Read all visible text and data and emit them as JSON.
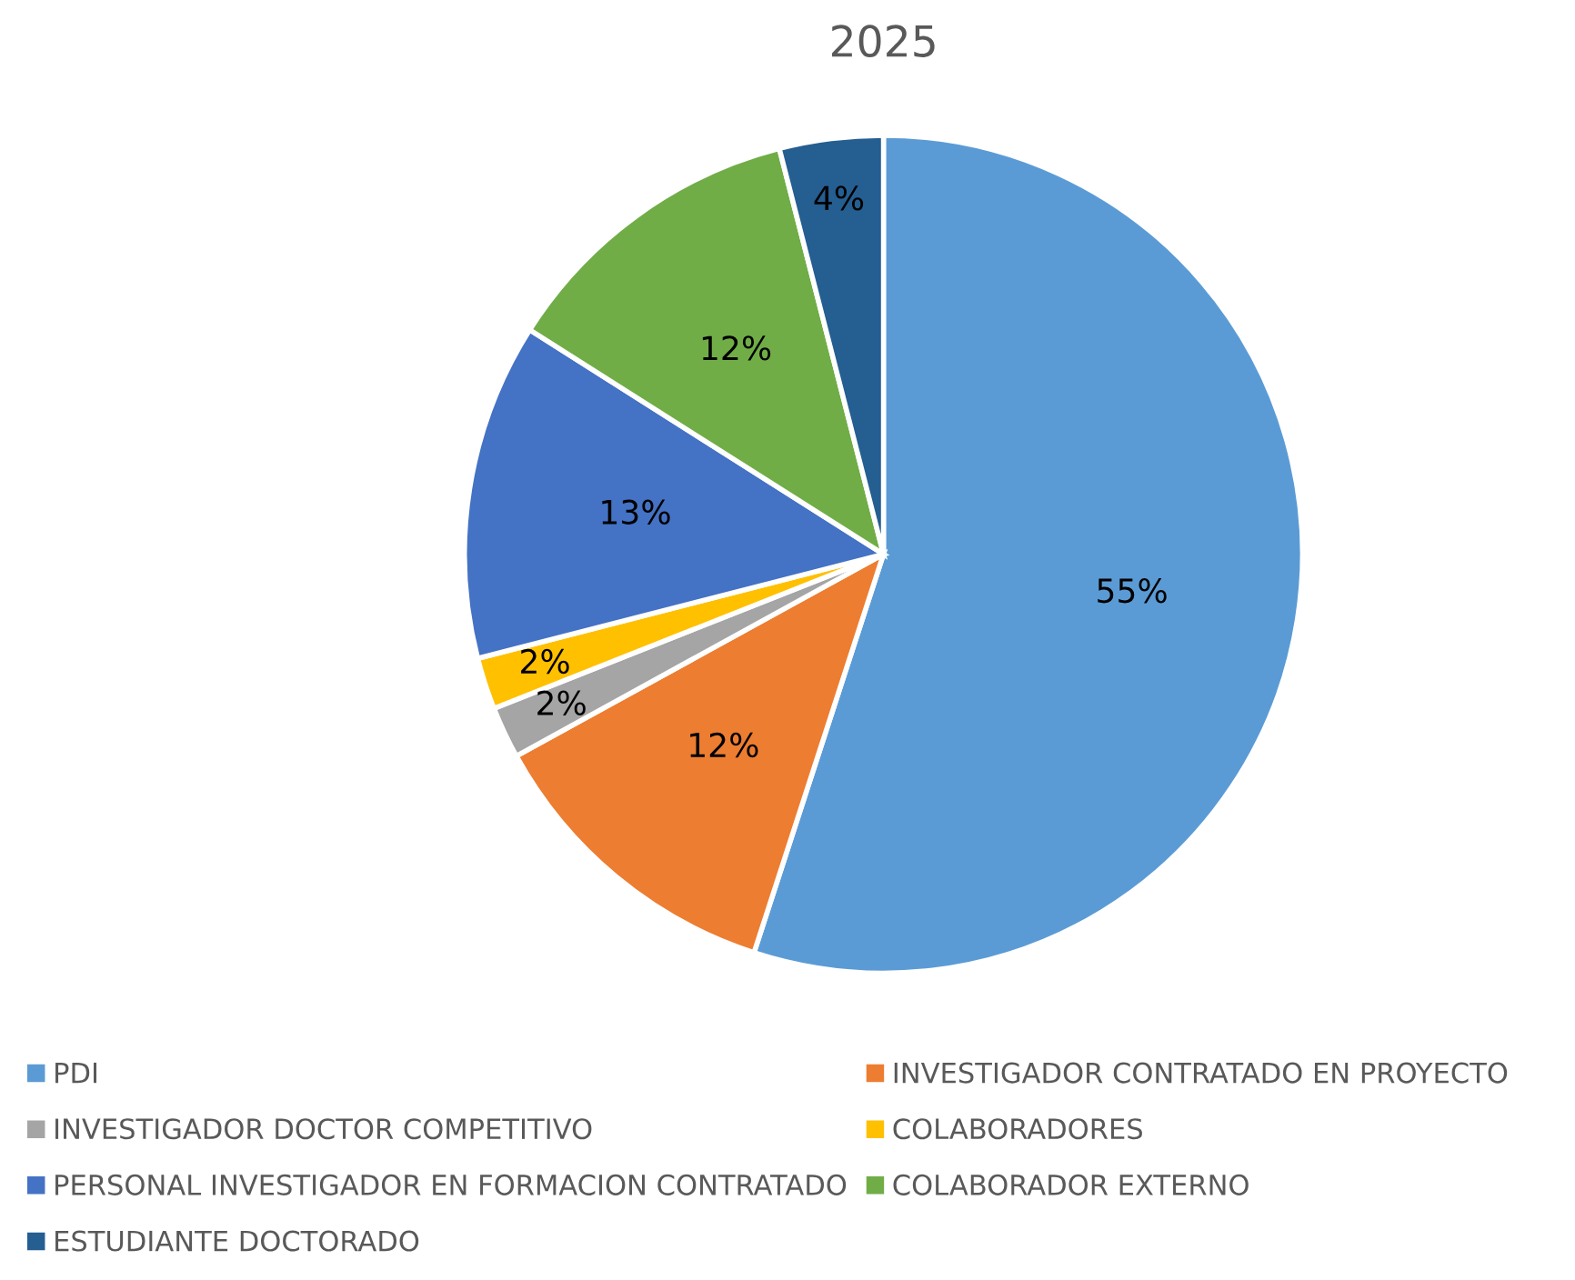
{
  "chart_data": {
    "type": "pie",
    "title": "2025",
    "categories": [
      "PDI",
      "INVESTIGADOR CONTRATADO EN PROYECTO",
      "INVESTIGADOR DOCTOR COMPETITIVO",
      "COLABORADORES",
      "PERSONAL INVESTIGADOR EN FORMACION CONTRATADO",
      "COLABORADOR EXTERNO",
      "ESTUDIANTE DOCTORADO"
    ],
    "values": [
      55,
      12,
      2,
      2,
      13,
      12,
      4
    ],
    "colors": [
      "#5b9bd5",
      "#ed7d31",
      "#a5a5a5",
      "#ffc000",
      "#4472c4",
      "#70ad47",
      "#255e91"
    ],
    "value_labels": [
      "55%",
      "12%",
      "2%",
      "2%",
      "13%",
      "12%",
      "4%"
    ],
    "legend": "bottom"
  }
}
